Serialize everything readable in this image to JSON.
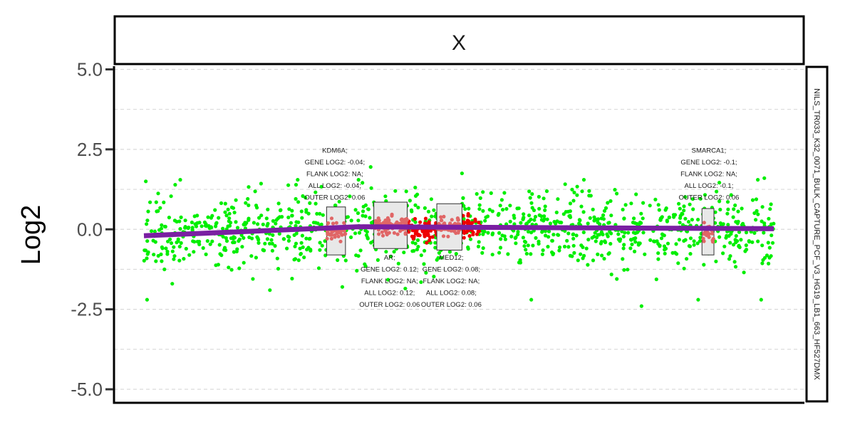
{
  "chart_data": {
    "type": "scatter",
    "facet_label": "X",
    "ylabel": "Log2",
    "side_strip_label": "NILS_TR033_K32_0071_BULK_CAPTURE_PCF_V3_HG19_LB1_663_HF527DMX",
    "ylim": [
      -5.4,
      5.1
    ],
    "xlim": [
      0,
      100
    ],
    "y_ticks": [
      5.0,
      2.5,
      0.0,
      -2.5,
      -5.0
    ],
    "y_tick_labels": [
      "5.0",
      "2.5",
      "0.0",
      "-2.5",
      "-5.0"
    ],
    "y_minor_gridlines": [
      3.75,
      1.25,
      -1.25,
      -3.75
    ],
    "grid": "dashed horizontal",
    "colors": {
      "bins": "#00ee00",
      "gene_targets": "#ee0000",
      "gene_box_points": "#e06666",
      "segment": "#7a1fa2",
      "box_fill": "#e8e8e8",
      "box_stroke": "#333333"
    },
    "segments": [
      {
        "x": [
          0,
          34
        ],
        "y": [
          -0.2,
          0.08
        ]
      },
      {
        "x": [
          34,
          100
        ],
        "y": [
          0.08,
          0.02
        ]
      }
    ],
    "gene_boxes": [
      {
        "gene": "KDM6A",
        "x": [
          29.0,
          32.0
        ],
        "box": [
          -0.8,
          0.7
        ],
        "median": -0.04
      },
      {
        "gene": "AR",
        "x": [
          36.5,
          41.8
        ],
        "box": [
          -0.6,
          0.85
        ],
        "median": 0.12
      },
      {
        "gene": "MED12",
        "x": [
          46.5,
          50.5
        ],
        "box": [
          -0.65,
          0.8
        ],
        "median": 0.08
      },
      {
        "gene": "SMARCA1",
        "x": [
          88.6,
          90.5
        ],
        "box": [
          -0.8,
          0.65
        ],
        "median": -0.1
      }
    ],
    "annotations": [
      {
        "gene": "KDM6A",
        "x": 30.3,
        "y_top": 2.4,
        "lines": [
          "KDM6A;",
          "GENE LOG2: -0.04;",
          "FLANK LOG2: NA;",
          "ALL LOG2: -0.04;",
          "OUTER LOG2: 0.06"
        ]
      },
      {
        "gene": "AR",
        "x": 39.0,
        "y_top": -0.95,
        "lines": [
          "AR;",
          "GENE LOG2: 0.12;",
          "FLANK LOG2: NA;",
          "ALL LOG2: 0.12;",
          "OUTER LOG2: 0.06"
        ]
      },
      {
        "gene": "MED12",
        "x": 48.8,
        "y_top": -0.95,
        "lines": [
          "MED12;",
          "GENE LOG2: 0.08;",
          "FLANK LOG2: NA;",
          "ALL LOG2: 0.08;",
          "OUTER LOG2: 0.06"
        ]
      },
      {
        "gene": "SMARCA1",
        "x": 89.7,
        "y_top": 2.4,
        "lines": [
          "SMARCA1;",
          "GENE LOG2: -0.1;",
          "FLANK LOG2: NA;",
          "ALL LOG2: -0.1;",
          "OUTER LOG2: 0.06"
        ]
      }
    ],
    "outliers": [
      {
        "x": 0.5,
        "y": -2.2
      },
      {
        "x": 0.3,
        "y": 1.5
      },
      {
        "x": 36.0,
        "y": 1.95
      },
      {
        "x": 50.5,
        "y": 1.75
      },
      {
        "x": 35.2,
        "y": -1.15
      },
      {
        "x": 61.5,
        "y": -2.2
      },
      {
        "x": 79.0,
        "y": -2.4
      },
      {
        "x": 88.0,
        "y": -2.2
      },
      {
        "x": 98.0,
        "y": -2.2
      },
      {
        "x": 98.5,
        "y": 1.6
      },
      {
        "x": 4.5,
        "y": -1.7
      },
      {
        "x": 20.0,
        "y": -1.9
      },
      {
        "x": 17.3,
        "y": -1.55
      },
      {
        "x": 41.5,
        "y": -1.85
      },
      {
        "x": 44.0,
        "y": -1.65
      },
      {
        "x": 31.5,
        "y": -1.8
      }
    ],
    "random_scatter": {
      "n_bins": 1100,
      "bin_sd": 0.55,
      "n_gene_targets": 160,
      "seed": 7
    }
  }
}
